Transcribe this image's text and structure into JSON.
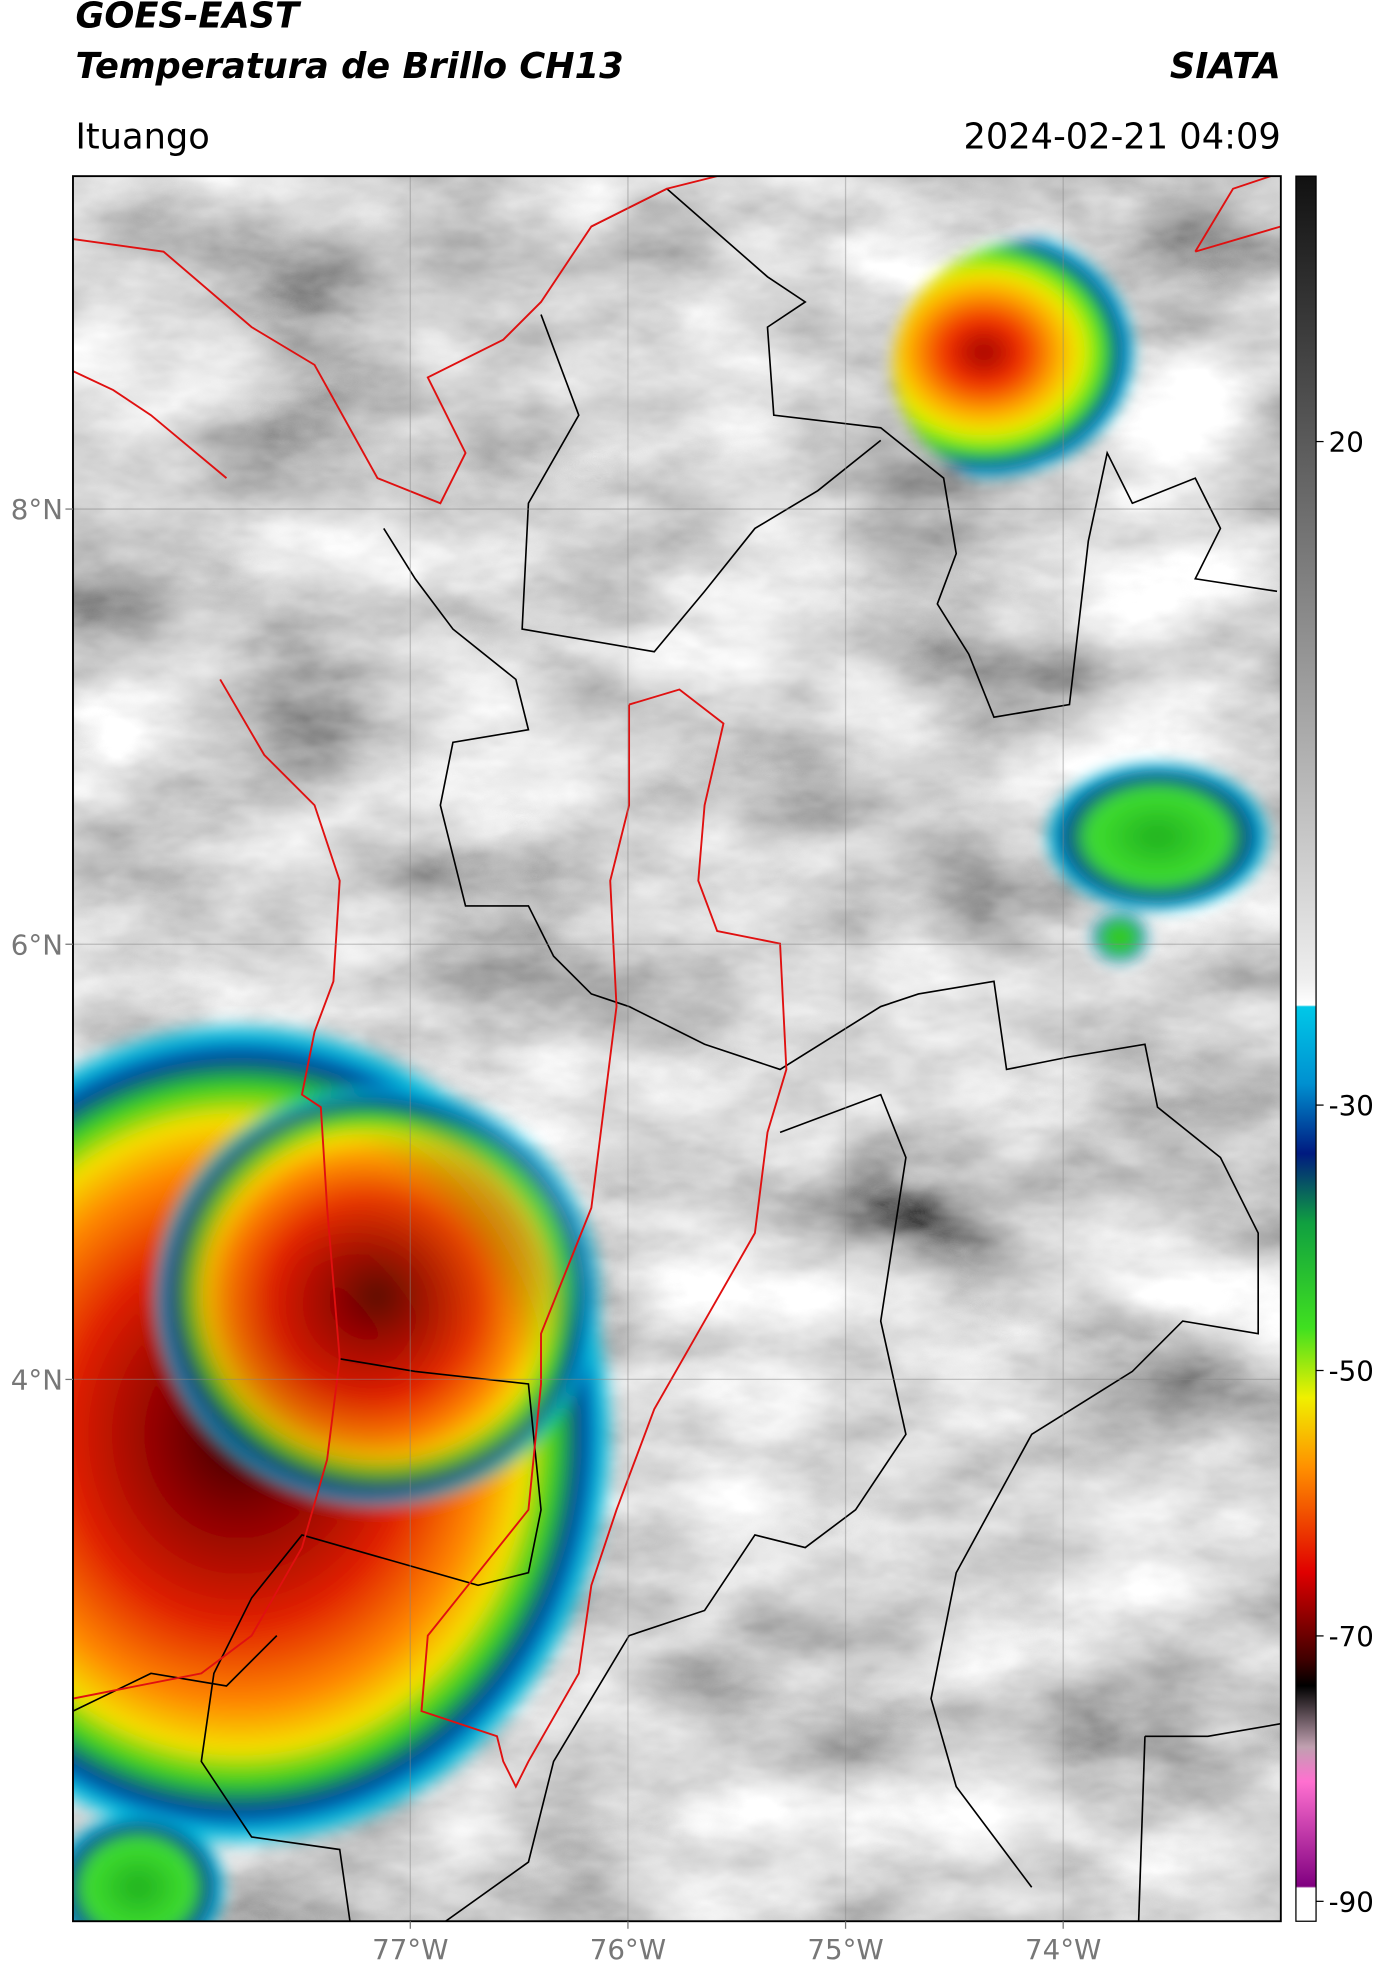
{
  "header": {
    "title_line1": "GOES-EAST",
    "title_line2": "Temperatura de Brillo CH13",
    "source": "SIATA",
    "location": "Ituango",
    "datetime": "2024-02-21 04:09"
  },
  "map": {
    "xlim": [
      -78.55,
      -73.0
    ],
    "ylim": [
      1.51,
      9.53
    ],
    "xticks": [
      {
        "value": -77,
        "label": "77°W"
      },
      {
        "value": -76,
        "label": "76°W"
      },
      {
        "value": -75,
        "label": "75°W"
      },
      {
        "value": -74,
        "label": "74°W"
      }
    ],
    "yticks": [
      {
        "value": 8,
        "label": "8°N"
      },
      {
        "value": 6,
        "label": "6°N"
      },
      {
        "value": 4,
        "label": "4°N"
      }
    ],
    "grid": true
  },
  "colorbar": {
    "lim": [
      -91.5,
      40
    ],
    "ticks": [
      20,
      -30,
      -50,
      -70,
      -90
    ]
  }
}
